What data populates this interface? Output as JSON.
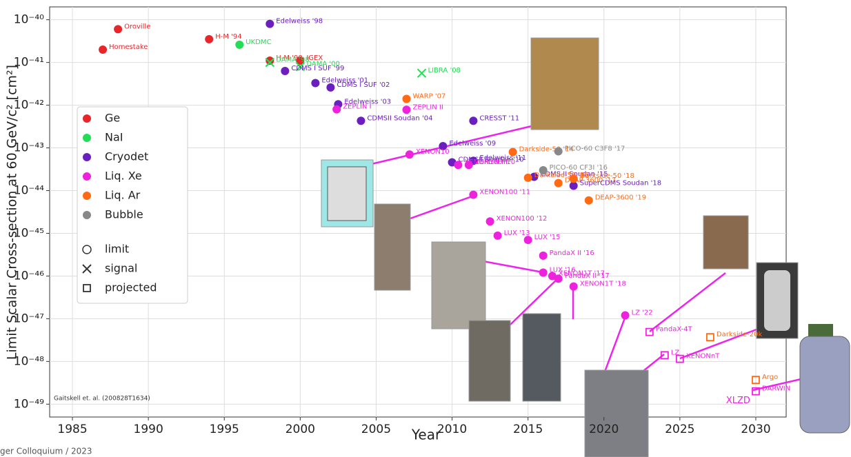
{
  "chart_data": {
    "type": "scatter",
    "y_label": "Limit Scalar Cross-section at 60 GeV/c² [cm²]",
    "x_label": "Year",
    "citation": "Gaitskell et. al. (200828T1634)",
    "footer": "ger Colloquium / 2023",
    "xlim": [
      1983.5,
      2032
    ],
    "xticks": [
      1985,
      1990,
      1995,
      2000,
      2005,
      2010,
      2015,
      2020,
      2025,
      2030
    ],
    "ylim": [
      5e-50,
      2e-40
    ],
    "ylog": true,
    "yticks": [
      {
        "value": 1e-40,
        "label": "10⁻⁴⁰"
      },
      {
        "value": 1e-41,
        "label": "10⁻⁴¹"
      },
      {
        "value": 1e-42,
        "label": "10⁻⁴²"
      },
      {
        "value": 1e-43,
        "label": "10⁻⁴³"
      },
      {
        "value": 1e-44,
        "label": "10⁻⁴⁴"
      },
      {
        "value": 1e-45,
        "label": "10⁻⁴⁵"
      },
      {
        "value": 1e-46,
        "label": "10⁻⁴⁶"
      },
      {
        "value": 1e-47,
        "label": "10⁻⁴⁷"
      },
      {
        "value": 1e-48,
        "label": "10⁻⁴⁸"
      },
      {
        "value": 1e-49,
        "label": "10⁻⁴⁹"
      }
    ],
    "grid": true,
    "legend_position": "left",
    "series": [
      {
        "name": "Ge",
        "color": "#e8262a",
        "x": [
          1988,
          1987,
          1994,
          1998,
          2000
        ],
        "values": [
          6e-41,
          2e-41,
          3.5e-41,
          1.1e-41,
          1.1e-41
        ],
        "labels": [
          "Oroville",
          "Homestake",
          "H-M '94",
          "H-M '98",
          "IGEX"
        ],
        "markers": [
          "circle",
          "circle",
          "circle",
          "circle",
          "circle"
        ]
      },
      {
        "name": "NaI",
        "color": "#22dd55",
        "x": [
          1996,
          1998,
          2000,
          2008
        ],
        "values": [
          2.6e-41,
          1e-41,
          8e-42,
          5.6e-42
        ],
        "labels": [
          "UKDMC",
          "DAMA '98",
          "DAMA '00",
          "LIBRA '08"
        ],
        "markers": [
          "circle",
          "x",
          "x",
          "x"
        ]
      },
      {
        "name": "Cryodet",
        "color": "#6b1fbf",
        "x": [
          1998,
          1999,
          2001,
          2002,
          2002.5,
          2004,
          2011.4,
          2009.4,
          2010,
          2011.4,
          2015.4,
          2018
        ],
        "values": [
          8e-41,
          6.3e-42,
          3.3e-42,
          2.6e-42,
          1.05e-42,
          4.3e-43,
          4.3e-43,
          1.1e-43,
          4.6e-44,
          5e-44,
          2.1e-44,
          1.3e-44
        ],
        "labels": [
          "Edelweiss '98",
          "CDMS I SUF '99",
          "Edelweiss '01",
          "CDMS I SUF '02",
          "Edelweiss '03",
          "CDMSII Soudan '04",
          "CRESST '11",
          "Edelweiss '09",
          "CDMSII Soudan '10",
          "Edelweiss '11",
          "CDMS II Soudan '15",
          "SuperCDMS Soudan '18"
        ],
        "markers": [
          "circle",
          "circle",
          "circle",
          "circle",
          "circle",
          "circle",
          "circle",
          "circle",
          "circle",
          "circle",
          "circle",
          "circle"
        ]
      },
      {
        "name": "Liq. Xe",
        "color": "#ee22dd",
        "x": [
          2002.4,
          2007,
          2007.2,
          2010.4,
          2011.1,
          2011.4,
          2012.5,
          2013,
          2015,
          2016,
          2016,
          2017,
          2016.6,
          2018,
          2021.4,
          2023,
          2024,
          2025,
          2030
        ],
        "values": [
          8e-43,
          7.8e-43,
          7e-44,
          4e-44,
          4e-44,
          8e-45,
          1.9e-45,
          8.8e-46,
          7e-46,
          3e-46,
          1.2e-46,
          8.7e-47,
          1e-46,
          5.7e-47,
          1.2e-47,
          4.9e-48,
          1.4e-48,
          1.15e-48,
          2e-49
        ],
        "labels": [
          "ZEPLIN I",
          "ZEPLIN II",
          "XENON10",
          "XENON100 '10",
          "ZEPLIN III",
          "XENON100 '11",
          "XENON100 '12",
          "LUX '13",
          "LUX '15",
          "PandaX II '16",
          "LUX '16",
          "PandaX II '17",
          "XENON1T '17",
          "XENON1T '18",
          "LZ '22",
          "PandaX-4T",
          "LZ",
          "XENONnT",
          "DARWIN"
        ],
        "markers": [
          "circle",
          "circle",
          "circle",
          "circle",
          "circle",
          "circle",
          "circle",
          "circle",
          "circle",
          "circle",
          "circle",
          "circle",
          "circle",
          "circle",
          "circle",
          "square",
          "square",
          "square",
          "square"
        ]
      },
      {
        "name": "Liq. Ar",
        "color": "#ff6a13",
        "x": [
          2007,
          2014,
          2015,
          2017,
          2018,
          2019,
          2027,
          2030
        ],
        "values": [
          1.4e-42,
          8e-44,
          2e-44,
          1.5e-44,
          1.9e-44,
          5.9e-45,
          3.7e-48,
          3.7e-49
        ],
        "labels": [
          "WARP '07",
          "Darkside-50 '14",
          "Darkside-50 '15",
          "DEAP-3600 '17",
          "Darkside-50 '18",
          "DEAP-3600 '19",
          "Darkside-20k",
          "Argo"
        ],
        "markers": [
          "circle",
          "circle",
          "circle",
          "circle",
          "circle",
          "circle",
          "square",
          "square"
        ]
      },
      {
        "name": "Bubble",
        "color": "#888888",
        "x": [
          2017,
          2016
        ],
        "values": [
          8.3e-44,
          3e-44
        ],
        "labels": [
          "PICO-60 C3F8 '17",
          "PICO-60 CF3I '16"
        ],
        "markers": [
          "circle",
          "circle"
        ]
      }
    ],
    "marker_legend": [
      {
        "name": "limit",
        "marker": "circle"
      },
      {
        "name": "signal",
        "marker": "x"
      },
      {
        "name": "projected",
        "marker": "square"
      }
    ],
    "annotation": "XLZD"
  }
}
